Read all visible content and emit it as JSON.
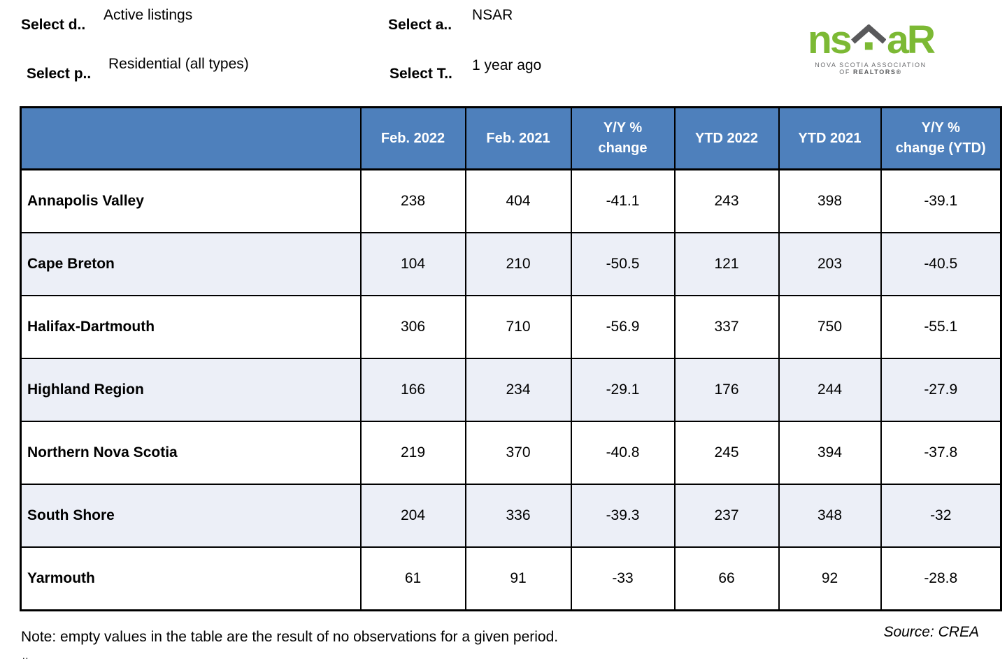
{
  "filters": {
    "dropdown1": {
      "label": "Select d..",
      "value": "Active listings"
    },
    "dropdown2": {
      "label": "Select p..",
      "value": "Residential (all types)"
    },
    "dropdown3": {
      "label": "Select a..",
      "value": "NSAR"
    },
    "dropdown4": {
      "label": "Select T..",
      "value": "1 year ago"
    }
  },
  "logo": {
    "text_ns": "ns",
    "text_ar": "aR",
    "caption_line1": "NOVA SCOTIA ASSOCIATION",
    "caption_line2_prefix": "OF ",
    "caption_line2_bold": "REALTORS®"
  },
  "table": {
    "corner_label": "",
    "columns": [
      "Feb. 2022",
      "Feb. 2021",
      "Y/Y %\nchange",
      "YTD 2022",
      "YTD 2021",
      "Y/Y %\nchange (YTD)"
    ],
    "rows": [
      {
        "region": "Annapolis Valley",
        "values": [
          "238",
          "404",
          "-41.1",
          "243",
          "398",
          "-39.1"
        ]
      },
      {
        "region": "Cape Breton",
        "values": [
          "104",
          "210",
          "-50.5",
          "121",
          "203",
          "-40.5"
        ]
      },
      {
        "region": "Halifax-Dartmouth",
        "values": [
          "306",
          "710",
          "-56.9",
          "337",
          "750",
          "-55.1"
        ]
      },
      {
        "region": "Highland Region",
        "values": [
          "166",
          "234",
          "-29.1",
          "176",
          "244",
          "-27.9"
        ]
      },
      {
        "region": "Northern Nova Scotia",
        "values": [
          "219",
          "370",
          "-40.8",
          "245",
          "394",
          "-37.8"
        ]
      },
      {
        "region": "South Shore",
        "values": [
          "204",
          "336",
          "-39.3",
          "237",
          "348",
          "-32"
        ]
      },
      {
        "region": "Yarmouth",
        "values": [
          "61",
          "91",
          "-33",
          "66",
          "92",
          "-28.8"
        ]
      }
    ]
  },
  "footer": {
    "note": "Note: empty values in the table are the result of no observations for a given period.",
    "ellipsis": "..",
    "source": "Source: CREA"
  },
  "colors": {
    "header_bg": "#4E80BC",
    "alt_row_bg": "#ECEFF7",
    "logo_green": "#7CB934",
    "logo_roof_gray": "#59595B"
  }
}
